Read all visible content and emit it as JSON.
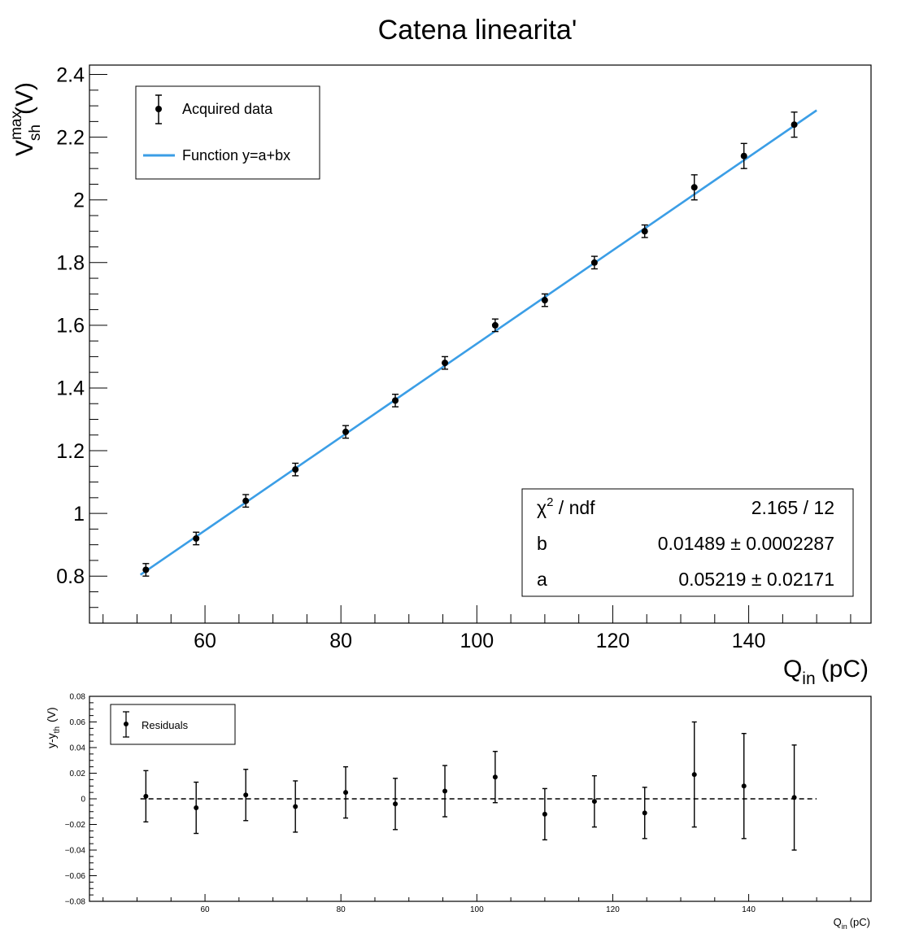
{
  "chart_data": [
    {
      "type": "scatter",
      "title": "Catena linearita'",
      "xlabel_main": "Q",
      "xlabel_sub": "in",
      "xlabel_unit": "(pC)",
      "ylabel_main": "V",
      "ylabel_sup": "max",
      "ylabel_sub": "sh",
      "ylabel_unit": "(V)",
      "xlim": [
        43,
        158
      ],
      "ylim": [
        0.65,
        2.43
      ],
      "xticks": [
        60,
        80,
        100,
        120,
        140
      ],
      "yticks": [
        0.8,
        1,
        1.2,
        1.4,
        1.6,
        1.8,
        2,
        2.2,
        2.4
      ],
      "xtick_labels": [
        "60",
        "80",
        "100",
        "120",
        "140"
      ],
      "ytick_labels": [
        "0.8",
        "1",
        "1.2",
        "1.4",
        "1.6",
        "1.8",
        "2",
        "2.2",
        "2.4"
      ],
      "series": [
        {
          "name": "Acquired data",
          "x": [
            51.3,
            58.7,
            66.0,
            73.3,
            80.7,
            88.0,
            95.3,
            102.7,
            110.0,
            117.3,
            124.7,
            132.0,
            139.3,
            146.7
          ],
          "y": [
            0.82,
            0.92,
            1.04,
            1.14,
            1.26,
            1.36,
            1.48,
            1.6,
            1.68,
            1.8,
            1.9,
            2.04,
            2.14,
            2.24
          ],
          "yerr": [
            0.02,
            0.02,
            0.02,
            0.02,
            0.02,
            0.02,
            0.02,
            0.02,
            0.02,
            0.02,
            0.02,
            0.04,
            0.04,
            0.04
          ],
          "color": "#000000"
        },
        {
          "name": "Function y=a+bx",
          "fit": {
            "a": 0.05219,
            "b": 0.01489,
            "x_range": [
              50.5,
              150
            ]
          },
          "color": "#3b9ee6"
        }
      ],
      "legend_position": "top-left",
      "stats_box": {
        "position": "bottom-right",
        "rows": [
          {
            "label_main": "χ",
            "label_sup": "2",
            "label_rest": " / ndf",
            "value": "2.165 / 12"
          },
          {
            "label_main": "b",
            "label_sup": "",
            "label_rest": "",
            "value": "0.01489 ± 0.0002287"
          },
          {
            "label_main": "a",
            "label_sup": "",
            "label_rest": "",
            "value": "0.05219 ± 0.02171"
          }
        ]
      }
    },
    {
      "type": "scatter",
      "xlabel_main": "Q",
      "xlabel_sub": "in",
      "xlabel_unit": "(pC)",
      "ylabel_main": "y-y",
      "ylabel_sub": "th",
      "ylabel_unit": "(V)",
      "xlim": [
        43,
        158
      ],
      "ylim": [
        -0.08,
        0.08
      ],
      "xticks": [
        60,
        80,
        100,
        120,
        140
      ],
      "yticks": [
        -0.08,
        -0.06,
        -0.04,
        -0.02,
        0,
        0.02,
        0.04,
        0.06,
        0.08
      ],
      "xtick_labels": [
        "60",
        "80",
        "100",
        "120",
        "140"
      ],
      "ytick_labels": [
        "−0.08",
        "−0.06",
        "−0.04",
        "−0.02",
        "0",
        "0.02",
        "0.04",
        "0.06",
        "0.08"
      ],
      "series": [
        {
          "name": "Residuals",
          "x": [
            51.3,
            58.7,
            66.0,
            73.3,
            80.7,
            88.0,
            95.3,
            102.7,
            110.0,
            117.3,
            124.7,
            132.0,
            139.3,
            146.7
          ],
          "y": [
            0.002,
            -0.007,
            0.003,
            -0.006,
            0.005,
            -0.004,
            0.006,
            0.017,
            -0.012,
            -0.002,
            -0.011,
            0.019,
            0.01,
            0.001
          ],
          "yerr": [
            0.02,
            0.02,
            0.02,
            0.02,
            0.02,
            0.02,
            0.02,
            0.02,
            0.02,
            0.02,
            0.02,
            0.041,
            0.041,
            0.041
          ],
          "color": "#000000"
        }
      ],
      "reference_line": {
        "y": 0,
        "x_range": [
          50.5,
          150
        ],
        "style": "dashed"
      },
      "legend_position": "top-left"
    }
  ]
}
